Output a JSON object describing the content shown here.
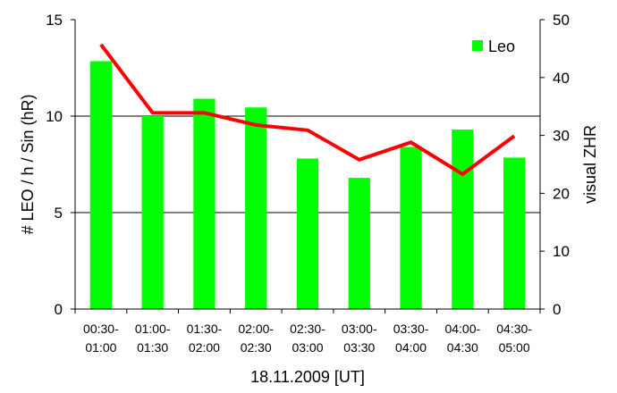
{
  "chart_data": {
    "type": "bar",
    "categories": [
      [
        "00:30-",
        "01:00"
      ],
      [
        "01:00-",
        "01:30"
      ],
      [
        "01:30-",
        "02:00"
      ],
      [
        "02:00-",
        "02:30"
      ],
      [
        "02:30-",
        "03:00"
      ],
      [
        "03:00-",
        "03:30"
      ],
      [
        "03:30-",
        "04:00"
      ],
      [
        "04:00-",
        "04:30"
      ],
      [
        "04:30-",
        "05:00"
      ]
    ],
    "series": [
      {
        "name": "Leo",
        "type": "bar",
        "axis": "left",
        "color": "#00ff00",
        "values": [
          12.85,
          10.0,
          10.9,
          10.45,
          7.8,
          6.8,
          8.4,
          9.3,
          7.85
        ]
      },
      {
        "type": "line",
        "axis": "right",
        "color": "#ff0000",
        "values": [
          45.7,
          33.9,
          33.9,
          31.8,
          30.9,
          25.8,
          28.8,
          23.3,
          29.9
        ]
      }
    ],
    "xlabel": "18.11.2009 [UT]",
    "ylabel_left": "# LEO / h / Sin (hR)",
    "ylabel_right": "visual ZHR",
    "ylim_left": [
      0,
      15
    ],
    "yticks_left": [
      0,
      5,
      10,
      15
    ],
    "ylim_right": [
      0,
      50
    ],
    "yticks_right": [
      0,
      10,
      20,
      30,
      40,
      50
    ],
    "grid": "horizontal at left major ticks",
    "legend_position": "top-right"
  }
}
